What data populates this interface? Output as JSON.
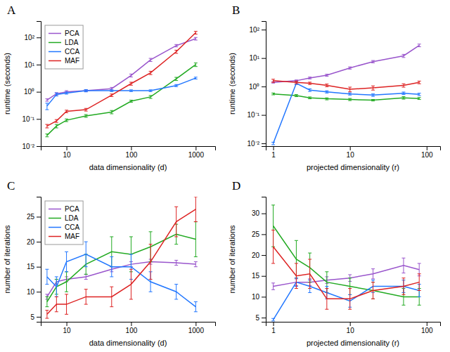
{
  "chart_data": [
    {
      "type": "line",
      "title": "A",
      "xlabel": "data dimensionality (d)",
      "ylabel": "runtime (seconds)",
      "log": true,
      "legend": "upper left",
      "grid": false,
      "x": [
        5,
        7,
        10,
        20,
        50,
        100,
        200,
        500,
        1000
      ],
      "series": [
        {
          "name": "PCA",
          "color": "#9955CC",
          "values": [
            0.5,
            0.85,
            1.0,
            1.1,
            1.3,
            4.0,
            15.0,
            50.0,
            90.0
          ],
          "errors": [
            0.05,
            0.08,
            0.1,
            0.1,
            0.15,
            0.5,
            2.0,
            5.0,
            10.0
          ]
        },
        {
          "name": "LDA",
          "color": "#22AA22",
          "values": [
            0.025,
            0.055,
            0.09,
            0.13,
            0.18,
            0.45,
            0.65,
            3.0,
            10.0
          ],
          "errors": [
            0.003,
            0.008,
            0.01,
            0.015,
            0.025,
            0.04,
            0.08,
            0.4,
            1.5
          ]
        },
        {
          "name": "CCA",
          "color": "#2277FF",
          "values": [
            0.3,
            0.8,
            0.9,
            1.1,
            1.1,
            1.1,
            1.1,
            1.7,
            3.2
          ],
          "errors": [
            0.08,
            0.1,
            0.08,
            0.1,
            0.08,
            0.08,
            0.08,
            0.15,
            0.25
          ]
        },
        {
          "name": "MAF",
          "color": "#DD2222",
          "values": [
            0.055,
            0.085,
            0.19,
            0.22,
            0.75,
            2.0,
            5.0,
            30.0,
            150.0
          ],
          "errors": [
            0.008,
            0.01,
            0.02,
            0.025,
            0.08,
            0.25,
            0.7,
            4.0,
            18.0
          ]
        }
      ],
      "xlim": [
        4,
        2000
      ],
      "xticks": [
        10,
        100,
        1000
      ],
      "ylim": [
        0.01,
        400
      ],
      "yticks": [
        {
          "value": 0.01,
          "label": "10⁻²"
        },
        {
          "value": 0.1,
          "label": "10⁻¹"
        },
        {
          "value": 1,
          "label": "10⁰"
        },
        {
          "value": 10,
          "label": "10¹"
        },
        {
          "value": 100,
          "label": "10²"
        }
      ]
    },
    {
      "type": "line",
      "title": "B",
      "xlabel": "projected dimensionality (r)",
      "ylabel": "runtime (seconds)",
      "log": true,
      "grid": false,
      "x": [
        1,
        2,
        3,
        5,
        10,
        20,
        50,
        80
      ],
      "series": [
        {
          "name": "PCA",
          "color": "#9955CC",
          "values": [
            1.4,
            1.6,
            2.0,
            2.5,
            4.5,
            7.5,
            12.0,
            28.0
          ],
          "errors": [
            0.08,
            0.1,
            0.15,
            0.2,
            0.4,
            0.7,
            1.5,
            3.0
          ]
        },
        {
          "name": "LDA",
          "color": "#22AA22",
          "values": [
            0.55,
            0.48,
            0.4,
            0.37,
            0.35,
            0.33,
            0.4,
            0.38
          ],
          "errors": [
            0.04,
            0.04,
            0.03,
            0.03,
            0.03,
            0.02,
            0.04,
            0.03
          ]
        },
        {
          "name": "CCA",
          "color": "#2277FF",
          "values": [
            0.01,
            1.3,
            0.75,
            0.65,
            0.55,
            0.5,
            0.58,
            0.53
          ],
          "errors": [
            0.001,
            0.12,
            0.08,
            0.06,
            0.05,
            0.05,
            0.06,
            0.05
          ]
        },
        {
          "name": "MAF",
          "color": "#DD2222",
          "values": [
            1.6,
            1.4,
            1.3,
            1.1,
            0.8,
            0.9,
            1.1,
            1.4
          ],
          "errors": [
            0.2,
            0.15,
            0.12,
            0.12,
            0.15,
            0.15,
            0.15,
            0.15
          ]
        }
      ],
      "xlim": [
        0.8,
        150
      ],
      "xticks": [
        1,
        10,
        100
      ],
      "ylim": [
        0.008,
        200
      ],
      "yticks": [
        {
          "value": 0.01,
          "label": "10⁻²"
        },
        {
          "value": 0.1,
          "label": "10⁻¹"
        },
        {
          "value": 1,
          "label": "10⁰"
        },
        {
          "value": 10,
          "label": "10¹"
        },
        {
          "value": 100,
          "label": "10²"
        }
      ]
    },
    {
      "type": "line",
      "title": "C",
      "xlabel": "data dimensionality (d)",
      "ylabel": "number of iterations",
      "log": "x",
      "legend": "upper left",
      "grid": false,
      "x": [
        5,
        7,
        10,
        20,
        50,
        100,
        200,
        500,
        1000
      ],
      "series": [
        {
          "name": "PCA",
          "color": "#9955CC",
          "values": [
            9.0,
            12.0,
            12.5,
            13.0,
            14.5,
            15.5,
            16.0,
            15.8,
            15.5
          ],
          "errors": [
            0.5,
            0.5,
            0.5,
            0.5,
            0.5,
            0.5,
            0.5,
            0.5,
            0.5
          ]
        },
        {
          "name": "LDA",
          "color": "#22AA22",
          "values": [
            8.0,
            11.0,
            12.0,
            15.5,
            18.0,
            17.5,
            19.0,
            21.5,
            20.5
          ],
          "errors": [
            1.0,
            1.5,
            2.0,
            2.0,
            3.0,
            3.5,
            3.0,
            2.0,
            3.5
          ]
        },
        {
          "name": "CCA",
          "color": "#2277FF",
          "values": [
            13.0,
            11.0,
            16.0,
            17.5,
            15.0,
            15.0,
            12.0,
            10.0,
            7.0
          ],
          "errors": [
            1.5,
            2.0,
            2.0,
            2.5,
            2.0,
            2.5,
            2.0,
            1.5,
            1.0
          ]
        },
        {
          "name": "MAF",
          "color": "#DD2222",
          "values": [
            5.5,
            7.5,
            7.5,
            9.0,
            9.0,
            11.5,
            16.0,
            24.0,
            26.5
          ],
          "errors": [
            0.8,
            1.5,
            2.0,
            1.5,
            2.0,
            3.0,
            3.5,
            3.0,
            2.5
          ]
        }
      ],
      "xlim": [
        4,
        2000
      ],
      "xticks": [
        10,
        100,
        1000
      ],
      "ylim": [
        4,
        29
      ],
      "yticks": [
        5,
        10,
        15,
        20,
        25
      ]
    },
    {
      "type": "line",
      "title": "D",
      "xlabel": "projected dimensionality (r)",
      "ylabel": "number of iterations",
      "log": "x",
      "grid": false,
      "x": [
        1,
        2,
        3,
        5,
        10,
        20,
        50,
        80
      ],
      "series": [
        {
          "name": "PCA",
          "color": "#9955CC",
          "values": [
            12.5,
            13.5,
            13.5,
            14.0,
            14.5,
            15.5,
            17.5,
            16.5
          ],
          "errors": [
            0.8,
            0.8,
            0.8,
            0.8,
            0.8,
            1.2,
            1.8,
            1.5
          ]
        },
        {
          "name": "LDA",
          "color": "#22AA22",
          "values": [
            27.0,
            19.0,
            17.0,
            13.5,
            12.5,
            11.5,
            10.0,
            10.0
          ],
          "errors": [
            5.0,
            4.5,
            3.5,
            2.5,
            2.0,
            2.0,
            2.0,
            2.0
          ]
        },
        {
          "name": "CCA",
          "color": "#2277FF",
          "values": [
            4.5,
            13.5,
            12.5,
            11.0,
            9.0,
            12.5,
            12.5,
            11.5
          ],
          "errors": [
            0.3,
            1.0,
            1.5,
            1.5,
            1.5,
            1.5,
            1.5,
            1.5
          ]
        },
        {
          "name": "MAF",
          "color": "#DD2222",
          "values": [
            22.0,
            15.0,
            15.5,
            9.5,
            9.5,
            11.5,
            12.5,
            13.5
          ],
          "errors": [
            4.0,
            3.0,
            3.5,
            2.5,
            2.5,
            2.0,
            2.0,
            2.0
          ]
        }
      ],
      "xlim": [
        0.8,
        150
      ],
      "xticks": [
        1,
        10,
        100
      ],
      "ylim": [
        4,
        34
      ],
      "yticks": [
        5,
        10,
        15,
        20,
        25,
        30
      ]
    }
  ]
}
